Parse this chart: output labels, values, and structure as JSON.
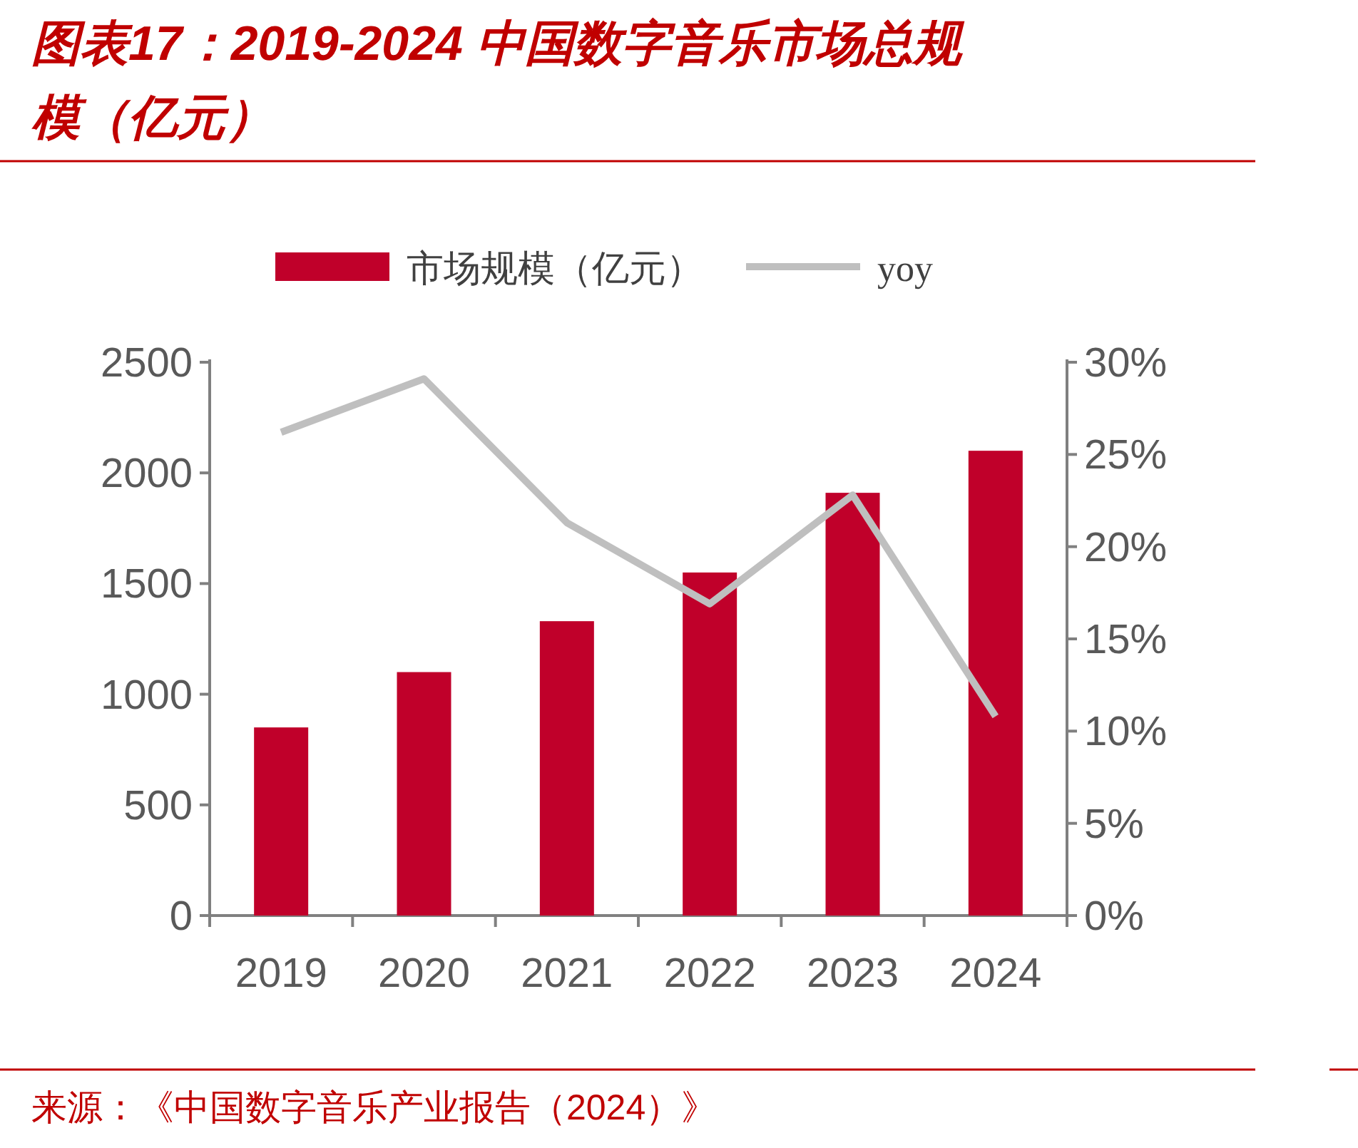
{
  "chart_data": {
    "type": "bar",
    "title": "图表17：2019-2024 中国数字音乐市场总规模（亿元）",
    "categories": [
      "2019",
      "2020",
      "2021",
      "2022",
      "2023",
      "2024"
    ],
    "series": [
      {
        "name": "市场规模（亿元）",
        "color": "#c0002a",
        "values": [
          850,
          1100,
          1330,
          1550,
          1910,
          2100
        ]
      },
      {
        "name": "yoy",
        "type": "line",
        "axis": "y2",
        "color": "#bfbfbf",
        "values": [
          26.2,
          29.1,
          21.3,
          16.9,
          22.8,
          10.8
        ]
      }
    ],
    "ylim": [
      0,
      2500
    ],
    "yticks": [
      0,
      500,
      1000,
      1500,
      2000,
      2500
    ],
    "y2lim": [
      0,
      30
    ],
    "y2ticks": [
      {
        "value": 0,
        "label": "0%"
      },
      {
        "value": 5,
        "label": "5%"
      },
      {
        "value": 10,
        "label": "10%"
      },
      {
        "value": 15,
        "label": "15%"
      },
      {
        "value": 20,
        "label": "20%"
      },
      {
        "value": 25,
        "label": "25%"
      },
      {
        "value": 30,
        "label": "30%"
      }
    ],
    "legend": "top",
    "grid": false,
    "annotations": [
      "来源：《中国数字音乐产业报告（2024）》"
    ]
  }
}
